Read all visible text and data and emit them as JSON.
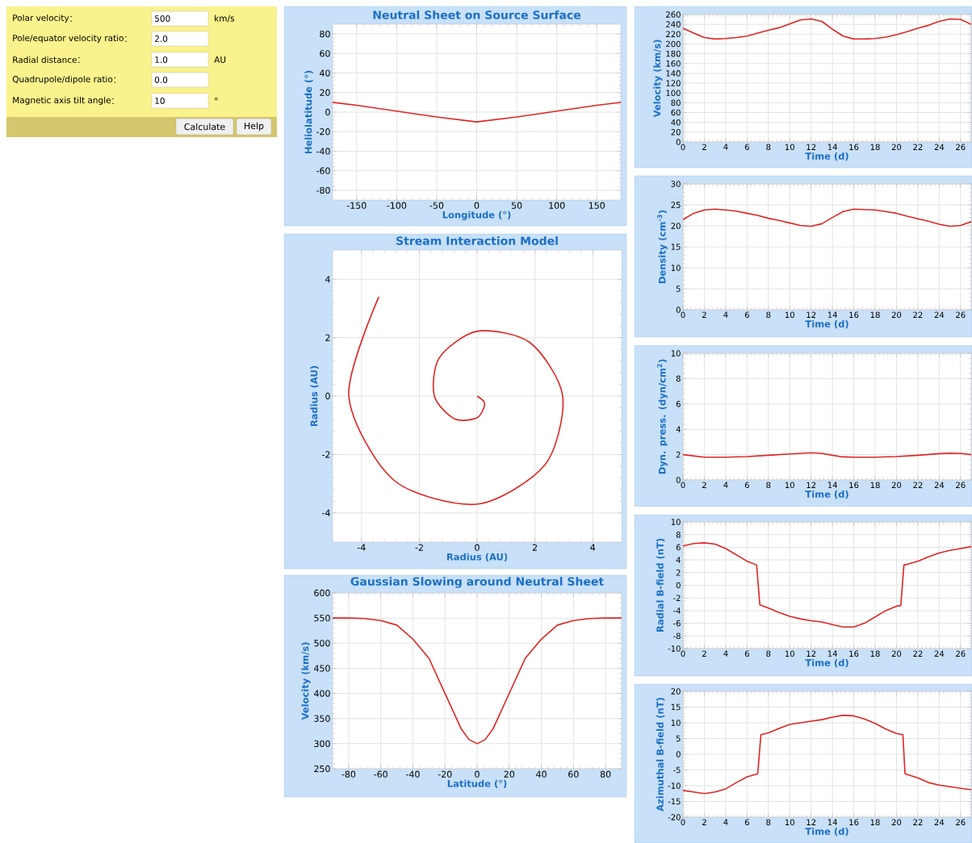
{
  "chart_data": [
    {
      "type": "other",
      "categories": [
        "Polar velocity",
        "Pole/equator velocity ratio",
        "Radial distance",
        "Quadrupole/dipole ratio",
        "Magnetic axis tilt angle"
      ],
      "value_labels": [
        "500",
        "2.0",
        "1.0",
        "0.0",
        "10"
      ],
      "annotations": [
        "km/s",
        "AU",
        "°",
        "Calculate",
        "Help"
      ]
    },
    {
      "type": "line",
      "title": "Neutral Sheet on Source Surface",
      "xlabel": "Longitude (°)",
      "ylabel": "Heliolatitude (°)",
      "color": "#e02424",
      "grid": true,
      "x": [
        -180,
        -150,
        -100,
        -50,
        0,
        50,
        100,
        150,
        180
      ],
      "values": [
        10,
        7,
        1,
        -5,
        -10,
        -5,
        1,
        7,
        10
      ],
      "xlim": [
        -180,
        180
      ],
      "ylim": [
        -90,
        90
      ],
      "xticks": [
        -150,
        -100,
        -50,
        0,
        50,
        100,
        150
      ],
      "yticks": [
        -80,
        -60,
        -40,
        -20,
        0,
        20,
        40,
        60,
        80
      ]
    },
    {
      "type": "line",
      "title": "Stream Interaction Model",
      "xlabel": "Radius (AU)",
      "ylabel": "Radius (AU)",
      "color": "#e02424",
      "grid": true,
      "x": [
        0,
        0.26,
        0,
        -0.78,
        -1.48,
        -1.31,
        0,
        1.83,
        2.96,
        2.35,
        0,
        -2.88,
        -4.44,
        -3.4
      ],
      "values": [
        0,
        -0.26,
        -0.74,
        -0.78,
        0,
        1.31,
        2.22,
        1.83,
        0,
        -2.35,
        -3.7,
        -2.88,
        0,
        3.4
      ],
      "xlim": [
        -5,
        5
      ],
      "ylim": [
        -5,
        5
      ],
      "xticks": [
        -4,
        -2,
        0,
        2,
        4
      ],
      "yticks": [
        -4,
        -2,
        0,
        2,
        4
      ]
    },
    {
      "type": "line",
      "title": "Gaussian Slowing around Neutral Sheet",
      "xlabel": "Latitude (°)",
      "ylabel": "Velocity (km/s)",
      "color": "#e02424",
      "grid": true,
      "x": [
        -90,
        -80,
        -70,
        -60,
        -50,
        -40,
        -30,
        -20,
        -10,
        -5,
        0,
        5,
        10,
        20,
        30,
        40,
        50,
        60,
        70,
        80,
        90
      ],
      "values": [
        550,
        550,
        549,
        545,
        536,
        508,
        470,
        400,
        330,
        308,
        300,
        308,
        330,
        400,
        470,
        508,
        536,
        545,
        549,
        550,
        550
      ],
      "xlim": [
        -90,
        90
      ],
      "ylim": [
        250,
        600
      ],
      "xticks": [
        -80,
        -60,
        -40,
        -20,
        0,
        20,
        40,
        60,
        80
      ],
      "yticks": [
        250,
        300,
        350,
        400,
        450,
        500,
        550,
        600
      ]
    },
    {
      "type": "line",
      "xlabel": "Time (d)",
      "ylabel": "Velocity (km/s)",
      "color": "#e02424",
      "grid": true,
      "x": [
        0,
        1,
        2,
        3,
        4,
        5,
        6,
        7,
        8,
        9,
        10,
        11,
        12,
        13,
        14,
        15,
        16,
        17,
        18,
        19,
        20,
        21,
        22,
        23,
        24,
        25,
        26,
        27
      ],
      "values": [
        232,
        222,
        213,
        210,
        211,
        213,
        216,
        222,
        228,
        233,
        241,
        249,
        251,
        246,
        230,
        216,
        210,
        210,
        211,
        214,
        219,
        225,
        232,
        238,
        246,
        251,
        250,
        240
      ],
      "xlim": [
        0,
        27
      ],
      "ylim": [
        0,
        260
      ],
      "xticks": [
        0,
        2,
        4,
        6,
        8,
        10,
        12,
        14,
        16,
        18,
        20,
        22,
        24,
        26
      ],
      "yticks": [
        0,
        20,
        40,
        60,
        80,
        100,
        120,
        140,
        160,
        180,
        200,
        220,
        240,
        260
      ]
    },
    {
      "type": "line",
      "xlabel": "Time (d)",
      "ylabel": "Density (cm$^{-3}$)",
      "color": "#e02424",
      "grid": true,
      "x": [
        0,
        1,
        2,
        3,
        4,
        5,
        6,
        7,
        8,
        9,
        10,
        11,
        12,
        13,
        14,
        15,
        16,
        17,
        18,
        19,
        20,
        21,
        22,
        23,
        24,
        25,
        26,
        27
      ],
      "values": [
        21.5,
        23,
        23.8,
        24,
        23.8,
        23.5,
        23,
        22.5,
        21.8,
        21.3,
        20.7,
        20.1,
        19.9,
        20.5,
        22,
        23.4,
        24,
        23.9,
        23.8,
        23.4,
        23,
        22.3,
        21.7,
        21.1,
        20.4,
        19.9,
        20.1,
        21
      ],
      "xlim": [
        0,
        27
      ],
      "ylim": [
        0,
        30
      ],
      "xticks": [
        0,
        2,
        4,
        6,
        8,
        10,
        12,
        14,
        16,
        18,
        20,
        22,
        24,
        26
      ],
      "yticks": [
        0,
        5,
        10,
        15,
        20,
        25,
        30
      ]
    },
    {
      "type": "line",
      "xlabel": "Time (d)",
      "ylabel": "Dyn. press. (dyn/cm$^{2}$)",
      "color": "#e02424",
      "grid": true,
      "x": [
        0,
        2,
        4,
        6,
        8,
        10,
        12,
        13,
        14,
        15,
        16,
        18,
        20,
        22,
        24,
        25,
        26,
        27
      ],
      "values": [
        2.0,
        1.8,
        1.8,
        1.85,
        1.95,
        2.05,
        2.15,
        2.1,
        1.95,
        1.82,
        1.8,
        1.8,
        1.85,
        1.95,
        2.08,
        2.12,
        2.1,
        2.0
      ],
      "xlim": [
        0,
        27
      ],
      "ylim": [
        0,
        10
      ],
      "xticks": [
        0,
        2,
        4,
        6,
        8,
        10,
        12,
        14,
        16,
        18,
        20,
        22,
        24,
        26
      ],
      "yticks": [
        0,
        2,
        4,
        6,
        8,
        10
      ]
    },
    {
      "type": "line",
      "xlabel": "Time (d)",
      "ylabel": "Radial B-field (nT)",
      "color": "#e02424",
      "grid": true,
      "x": [
        0,
        1,
        2,
        3,
        4,
        5,
        6,
        6.9,
        7.2,
        8,
        9,
        10,
        11,
        12,
        13,
        14,
        15,
        16,
        17,
        18,
        19,
        20,
        20.4,
        20.7,
        21,
        22,
        23,
        24,
        25,
        26,
        27
      ],
      "values": [
        6.2,
        6.6,
        6.7,
        6.5,
        5.8,
        4.8,
        3.8,
        3.2,
        -3.1,
        -3.6,
        -4.3,
        -4.9,
        -5.3,
        -5.6,
        -5.8,
        -6.2,
        -6.6,
        -6.6,
        -6.0,
        -5.0,
        -4.0,
        -3.3,
        -3.2,
        3.2,
        3.3,
        3.8,
        4.5,
        5.1,
        5.5,
        5.8,
        6.1
      ],
      "xlim": [
        0,
        27
      ],
      "ylim": [
        -10,
        10
      ],
      "xticks": [
        0,
        2,
        4,
        6,
        8,
        10,
        12,
        14,
        16,
        18,
        20,
        22,
        24,
        26
      ],
      "yticks": [
        -10,
        -8,
        -6,
        -4,
        -2,
        0,
        2,
        4,
        6,
        8,
        10
      ]
    },
    {
      "type": "line",
      "xlabel": "Time (d)",
      "ylabel": "Azimuthal B-field (nT)",
      "color": "#e02424",
      "grid": true,
      "x": [
        0,
        1,
        2,
        3,
        4,
        5,
        6,
        7,
        7.3,
        8,
        9,
        10,
        11,
        12,
        13,
        14,
        15,
        16,
        17,
        18,
        19,
        20,
        20.6,
        20.8,
        22,
        23,
        24,
        25,
        26,
        27
      ],
      "values": [
        -11.5,
        -12.0,
        -12.5,
        -12.0,
        -11,
        -9,
        -7.2,
        -6.2,
        6.2,
        6.8,
        8.2,
        9.5,
        10.0,
        10.5,
        11.0,
        11.8,
        12.4,
        12.2,
        11.2,
        9.8,
        8.0,
        6.6,
        6.2,
        -6.2,
        -7.5,
        -9.0,
        -9.8,
        -10.3,
        -10.8,
        -11.3
      ],
      "xlim": [
        0,
        27
      ],
      "ylim": [
        -20,
        20
      ],
      "xticks": [
        0,
        2,
        4,
        6,
        8,
        10,
        12,
        14,
        16,
        18,
        20,
        22,
        24,
        26
      ],
      "yticks": [
        -20,
        -15,
        -10,
        -5,
        0,
        5,
        10,
        15,
        20
      ]
    }
  ]
}
